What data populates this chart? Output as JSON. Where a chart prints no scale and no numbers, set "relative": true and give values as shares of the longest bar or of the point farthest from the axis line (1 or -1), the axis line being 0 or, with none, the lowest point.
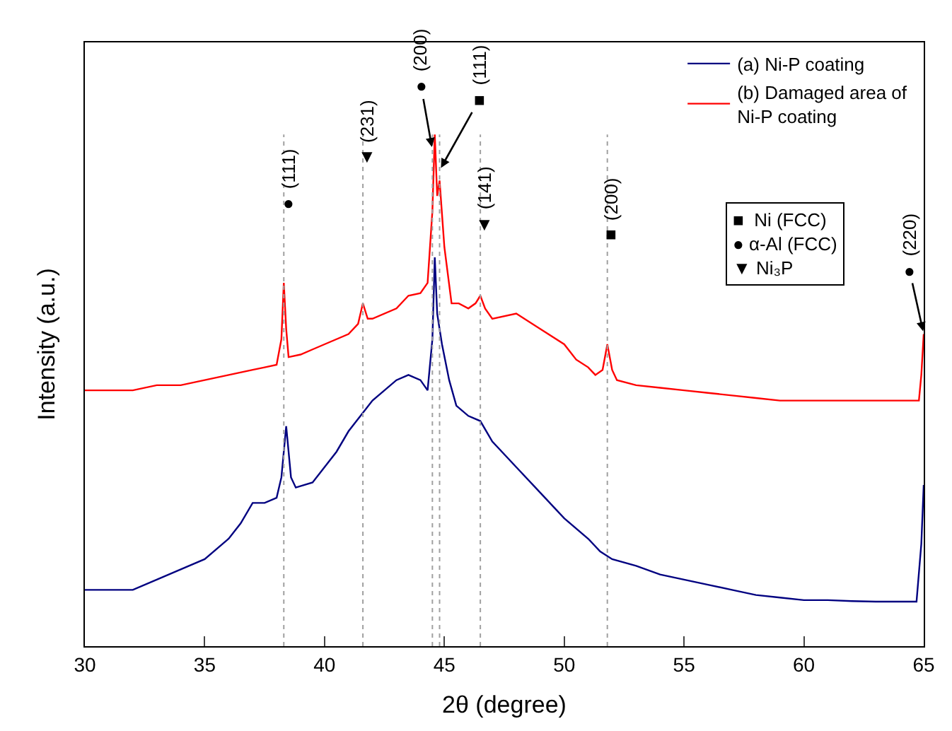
{
  "chart_data": {
    "type": "line",
    "relative": true,
    "xlabel": "2θ (degree)",
    "ylabel": "Intensity (a.u.)",
    "xlim": [
      30,
      65
    ],
    "xticks": [
      30,
      35,
      40,
      45,
      50,
      55,
      60,
      65
    ],
    "legend": "top right",
    "marker": "none",
    "line_style": "solid",
    "series": [
      {
        "name": "(a) Ni-P coating",
        "color": "#000080",
        "x": [
          30,
          31,
          32,
          33,
          34,
          35,
          36,
          36.5,
          37,
          37.5,
          38,
          38.2,
          38.4,
          38.6,
          38.8,
          39.5,
          40,
          40.5,
          41,
          41.5,
          42,
          42.5,
          43,
          43.5,
          44,
          44.3,
          44.5,
          44.6,
          44.7,
          44.9,
          45.2,
          45.5,
          46,
          46.5,
          47,
          48,
          49,
          50,
          51,
          51.5,
          52,
          53,
          54,
          55,
          56,
          57,
          58,
          59,
          60,
          61,
          62,
          63,
          64,
          64.7,
          64.9,
          65
        ],
        "values": [
          0.11,
          0.11,
          0.11,
          0.13,
          0.15,
          0.17,
          0.21,
          0.24,
          0.28,
          0.28,
          0.29,
          0.33,
          0.43,
          0.33,
          0.31,
          0.32,
          0.35,
          0.38,
          0.42,
          0.45,
          0.48,
          0.5,
          0.52,
          0.53,
          0.52,
          0.5,
          0.6,
          0.76,
          0.65,
          0.59,
          0.52,
          0.47,
          0.45,
          0.44,
          0.4,
          0.35,
          0.3,
          0.25,
          0.21,
          0.185,
          0.17,
          0.157,
          0.14,
          0.13,
          0.12,
          0.11,
          0.1,
          0.095,
          0.09,
          0.09,
          0.088,
          0.087,
          0.087,
          0.087,
          0.2,
          0.315
        ]
      },
      {
        "name": "(b) Damaged area of\nNi-P coating",
        "color": "#ff0000",
        "x": [
          30,
          31,
          32,
          33,
          34,
          35,
          36,
          37,
          37.5,
          38,
          38.2,
          38.3,
          38.4,
          38.5,
          39,
          39.5,
          40,
          41,
          41.4,
          41.6,
          41.8,
          42,
          43,
          43.5,
          44,
          44.3,
          44.5,
          44.6,
          44.7,
          44.8,
          45,
          45.3,
          45.6,
          46,
          46.3,
          46.5,
          46.7,
          47,
          48,
          49,
          50,
          50.5,
          51,
          51.3,
          51.6,
          51.8,
          52,
          52.2,
          53,
          54,
          55,
          56,
          57,
          58,
          59,
          60,
          61,
          62,
          63,
          64,
          64.8,
          64.9,
          65
        ],
        "values": [
          0.5,
          0.5,
          0.5,
          0.51,
          0.51,
          0.52,
          0.53,
          0.54,
          0.545,
          0.55,
          0.6,
          0.71,
          0.62,
          0.565,
          0.57,
          0.58,
          0.59,
          0.61,
          0.63,
          0.67,
          0.64,
          0.64,
          0.66,
          0.685,
          0.69,
          0.71,
          0.85,
          1.0,
          0.88,
          0.91,
          0.78,
          0.67,
          0.67,
          0.66,
          0.67,
          0.685,
          0.66,
          0.64,
          0.65,
          0.62,
          0.59,
          0.56,
          0.545,
          0.53,
          0.54,
          0.59,
          0.54,
          0.52,
          0.51,
          0.505,
          0.5,
          0.495,
          0.49,
          0.485,
          0.48,
          0.48,
          0.48,
          0.48,
          0.48,
          0.48,
          0.48,
          0.53,
          0.61
        ]
      }
    ],
    "ref_lines": [
      {
        "axis": "x",
        "value": 38.3,
        "color": "#a0a0a0",
        "line_style": "dotted"
      },
      {
        "axis": "x",
        "value": 41.6,
        "color": "#a0a0a0",
        "line_style": "dotted"
      },
      {
        "axis": "x",
        "value": 44.5,
        "color": "#a0a0a0",
        "line_style": "dotted"
      },
      {
        "axis": "x",
        "value": 44.8,
        "color": "#a0a0a0",
        "line_style": "dotted"
      },
      {
        "axis": "x",
        "value": 46.5,
        "color": "#a0a0a0",
        "line_style": "dotted"
      },
      {
        "axis": "x",
        "value": 51.8,
        "color": "#a0a0a0",
        "line_style": "dotted"
      }
    ],
    "annotations": [
      {
        "text": "● (111)",
        "x": 38.3,
        "y": 0.84
      },
      {
        "text": "▼ (231)",
        "x": 41.6,
        "y": 0.93
      },
      {
        "text": "● (200)",
        "x": 44.5,
        "y": 0.97
      },
      {
        "text": "■ (111)",
        "x": 44.8,
        "y": 0.93
      },
      {
        "text": "▼ (141)",
        "x": 46.5,
        "y": 0.8
      },
      {
        "text": "■ (200)",
        "x": 51.8,
        "y": 0.78
      },
      {
        "text": "● (220)",
        "x": 65,
        "y": 0.61
      },
      "■  Ni (FCC)",
      "● α-Al (FCC)",
      "▼ Ni₃P"
    ]
  }
}
